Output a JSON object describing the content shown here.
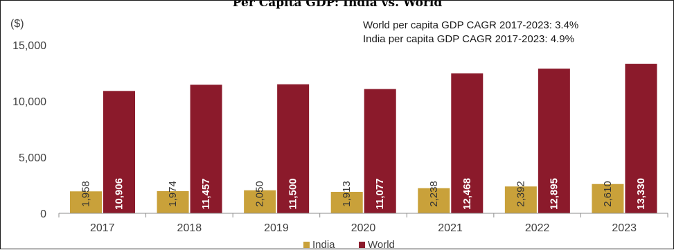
{
  "chart_data": {
    "type": "bar",
    "title": "Per Capita GDP: India vs. World",
    "unit_label": "($)",
    "annotations": [
      "World per capita GDP CAGR 2017-2023: 3.4%",
      "India per capita GDP CAGR 2017-2023: 4.9%"
    ],
    "categories": [
      "2017",
      "2018",
      "2019",
      "2020",
      "2021",
      "2022",
      "2023"
    ],
    "series": [
      {
        "name": "India",
        "values": [
          1958,
          1974,
          2050,
          1913,
          2238,
          2392,
          2610
        ],
        "labels": [
          "1,958",
          "1,974",
          "2,050",
          "1,913",
          "2,238",
          "2,392",
          "2,610"
        ],
        "color": "#c9a13a"
      },
      {
        "name": "World",
        "values": [
          10906,
          11457,
          11500,
          11077,
          12468,
          12895,
          13330
        ],
        "labels": [
          "10,906",
          "11,457",
          "11,500",
          "11,077",
          "12,468",
          "12,895",
          "13,330"
        ],
        "color": "#8b1a2b"
      }
    ],
    "ylim": [
      0,
      15000
    ],
    "yticks": [
      0,
      5000,
      10000,
      15000
    ],
    "ytick_labels": [
      "0",
      "5,000",
      "10,000",
      "15,000"
    ],
    "grid": false,
    "legend_position": "bottom-center"
  }
}
